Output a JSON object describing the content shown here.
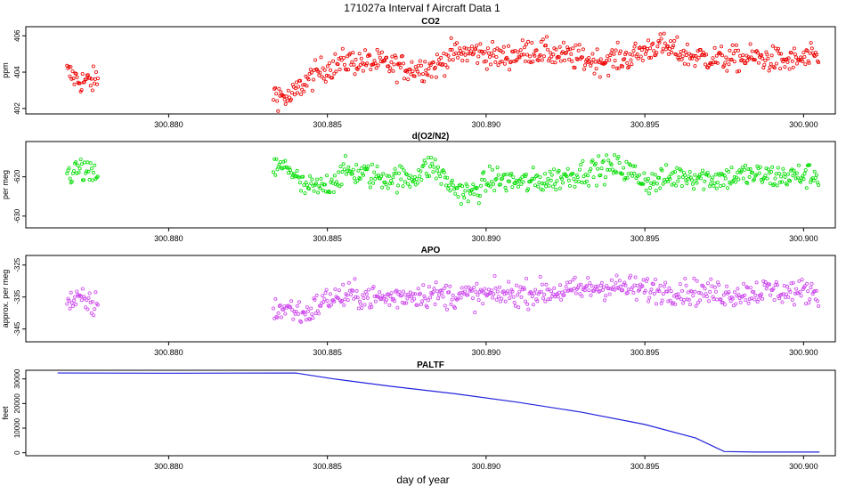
{
  "figure": {
    "title": "171027a   Interval f Aircraft Data 1",
    "xlabel": "day of year"
  },
  "chart_data": [
    {
      "type": "scatter",
      "title": "CO2",
      "ylabel": "ppm",
      "color": "#ee0000",
      "xlim": [
        300.8755,
        300.901
      ],
      "ylim": [
        401.7,
        406.5
      ],
      "yticks": [
        402,
        404,
        406
      ],
      "xticks": [
        300.88,
        300.885,
        300.89,
        300.895,
        300.9
      ],
      "xtick_labels": [
        "300.880",
        "300.885",
        "300.890",
        "300.895",
        "300.900"
      ],
      "segments": [
        {
          "x": [
            300.8768,
            300.8772,
            300.8776,
            300.8778
          ],
          "y": [
            404.0,
            403.5,
            403.5,
            403.6
          ]
        },
        {
          "x": [
            300.8833,
            300.8838,
            300.8842,
            300.8848,
            300.8856,
            300.8866,
            300.8876,
            300.8884,
            300.8889,
            300.8897,
            300.8905,
            300.8915,
            300.8925,
            300.8935,
            300.8945,
            300.8954,
            300.8964,
            300.8975,
            300.8985,
            300.8995,
            300.9005
          ],
          "y": [
            402.9,
            402.5,
            403.3,
            404.1,
            404.6,
            404.5,
            404.2,
            404.3,
            405.0,
            405.1,
            404.8,
            405.2,
            404.9,
            404.6,
            404.8,
            405.5,
            404.9,
            404.7,
            404.8,
            404.6,
            404.8
          ]
        }
      ],
      "noise": 0.35,
      "density": 40
    },
    {
      "type": "scatter",
      "title": "d(O2/N2)",
      "ylabel": "per meg",
      "color": "#00dd00",
      "xlim": [
        300.8755,
        300.901
      ],
      "ylim": [
        -633.0,
        -611.0
      ],
      "yticks": [
        -630,
        -620
      ],
      "xticks": [
        300.88,
        300.885,
        300.89,
        300.895,
        300.9
      ],
      "xtick_labels": [
        "300.880",
        "300.885",
        "300.890",
        "300.895",
        "300.900"
      ],
      "segments": [
        {
          "x": [
            300.8768,
            300.8772,
            300.8776,
            300.8778
          ],
          "y": [
            -619.5,
            -618.0,
            -620.0,
            -618.5
          ]
        },
        {
          "x": [
            300.8833,
            300.8838,
            300.8842,
            300.8848,
            300.8856,
            300.8866,
            300.8876,
            300.8883,
            300.8889,
            300.8895,
            300.8902,
            300.8912,
            300.8922,
            300.8932,
            300.8942,
            300.8952,
            300.8962,
            300.8972,
            300.8982,
            300.8992,
            300.9005
          ],
          "y": [
            -618.0,
            -617.5,
            -622.5,
            -623.0,
            -618.5,
            -620.0,
            -620.5,
            -617.0,
            -622.5,
            -624.5,
            -620.5,
            -621.5,
            -620.5,
            -618.5,
            -617.5,
            -621.5,
            -619.5,
            -620.5,
            -619.5,
            -620.0,
            -619.5
          ]
        }
      ],
      "noise": 1.6,
      "density": 38
    },
    {
      "type": "scatter",
      "title": "APO",
      "ylabel": "approx. per meg",
      "color": "#cc44ee",
      "xlim": [
        300.8755,
        300.901
      ],
      "ylim": [
        -349.0,
        -322.0
      ],
      "yticks": [
        -345,
        -335,
        -325
      ],
      "xticks": [
        300.88,
        300.885,
        300.89,
        300.895,
        300.9
      ],
      "xtick_labels": [
        "300.880",
        "300.885",
        "300.890",
        "300.895",
        "300.900"
      ],
      "segments": [
        {
          "x": [
            300.8768,
            300.8772,
            300.8776,
            300.8778
          ],
          "y": [
            -336.5,
            -336.0,
            -337.5,
            -337.0
          ]
        },
        {
          "x": [
            300.8833,
            300.8838,
            300.8843,
            300.885,
            300.8858,
            300.8868,
            300.8878,
            300.8888,
            300.8898,
            300.8908,
            300.8918,
            300.8928,
            300.8938,
            300.8948,
            300.8958,
            300.8968,
            300.8978,
            300.8988,
            300.8998,
            300.9005
          ],
          "y": [
            -339.0,
            -338.5,
            -340.5,
            -335.5,
            -334.5,
            -335.5,
            -334.0,
            -334.5,
            -334.5,
            -334.0,
            -333.5,
            -333.0,
            -331.5,
            -332.5,
            -333.0,
            -333.5,
            -334.0,
            -333.0,
            -333.5,
            -333.0
          ]
        }
      ],
      "noise": 2.0,
      "density": 38
    },
    {
      "type": "line",
      "title": "PALTF",
      "ylabel": "feet",
      "color": "#2222dd",
      "xlim": [
        300.8755,
        300.901
      ],
      "ylim": [
        -1200,
        33500
      ],
      "yticks": [
        0,
        10000,
        20000,
        30000
      ],
      "xticks": [
        300.88,
        300.885,
        300.89,
        300.895,
        300.9
      ],
      "xtick_labels": [
        "300.880",
        "300.885",
        "300.890",
        "300.895",
        "300.900"
      ],
      "x": [
        300.8765,
        300.88,
        300.884,
        300.8852,
        300.887,
        300.889,
        300.891,
        300.893,
        300.895,
        300.8966,
        300.8975,
        300.8985,
        300.9005
      ],
      "y": [
        32400,
        32300,
        32400,
        30000,
        27000,
        24000,
        20500,
        16500,
        11500,
        6000,
        500,
        300,
        300
      ]
    }
  ]
}
